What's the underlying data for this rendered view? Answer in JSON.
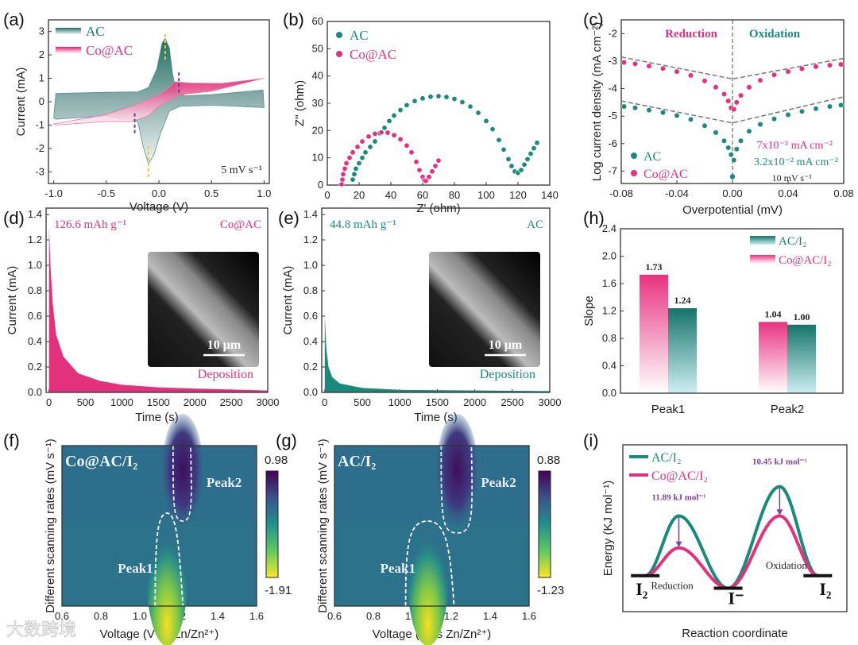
{
  "watermark": "大数跨境",
  "colors": {
    "teal": "#1a8a7a",
    "pink": "#e3317d",
    "purple": "#7b3fa0",
    "yellow": "#f2c230"
  },
  "chart_data": [
    {
      "panel": "(a)",
      "type": "area",
      "xlabel": "Voltage (V)",
      "ylabel": "Current (mA)",
      "xlim": [
        -1.05,
        1.05
      ],
      "ylim": [
        -3.5,
        3.5
      ],
      "xticks": [
        -1,
        -0.5,
        0,
        0.5,
        1
      ],
      "xticklabels": [
        "-1.0",
        "-0.5",
        "0.0",
        "0.5",
        "1.0"
      ],
      "yticks": [
        -3,
        -2,
        -1,
        0,
        1,
        2,
        3
      ],
      "yticklabels": [
        "-3",
        "-2",
        "-1",
        "0",
        "1",
        "2",
        "3"
      ],
      "series": [
        {
          "name": "AC",
          "color": "#1a7a6e",
          "points": [
            [
              -1,
              -0.7
            ],
            [
              -0.98,
              0.35
            ],
            [
              -0.5,
              0.4
            ],
            [
              -0.2,
              0.42
            ],
            [
              -0.1,
              0.6
            ],
            [
              -0.02,
              1.4
            ],
            [
              0.03,
              2.5
            ],
            [
              0.06,
              2.7
            ],
            [
              0.1,
              2.3
            ],
            [
              0.13,
              1.2
            ],
            [
              0.16,
              0.5
            ],
            [
              0.25,
              0.25
            ],
            [
              0.5,
              0.3
            ],
            [
              0.99,
              0.5
            ],
            [
              1,
              -0.25
            ],
            [
              0.5,
              -0.15
            ],
            [
              0.2,
              -0.2
            ],
            [
              0.1,
              -0.4
            ],
            [
              0.02,
              -1.3
            ],
            [
              -0.05,
              -2.3
            ],
            [
              -0.1,
              -2.65
            ],
            [
              -0.15,
              -1.9
            ],
            [
              -0.2,
              -0.85
            ],
            [
              -0.5,
              -0.6
            ],
            [
              -0.98,
              -0.75
            ]
          ]
        },
        {
          "name": "Co@AC",
          "color": "#e3317d",
          "points": [
            [
              -1,
              -0.95
            ],
            [
              -0.5,
              -0.55
            ],
            [
              -0.2,
              -0.1
            ],
            [
              0,
              0.3
            ],
            [
              0.1,
              0.6
            ],
            [
              0.15,
              0.85
            ],
            [
              0.3,
              0.8
            ],
            [
              0.6,
              0.78
            ],
            [
              1,
              1.0
            ],
            [
              0.95,
              0.95
            ],
            [
              0.5,
              0.45
            ],
            [
              0.2,
              0.3
            ],
            [
              0.1,
              0.05
            ],
            [
              0,
              -0.2
            ],
            [
              -0.1,
              -0.6
            ],
            [
              -0.25,
              -0.85
            ],
            [
              -0.5,
              -0.85
            ],
            [
              -0.98,
              -1.0
            ]
          ]
        }
      ],
      "peak_markers": [
        {
          "x": 0.06,
          "y": [
            1.8,
            2.95
          ],
          "color": "#f2c230"
        },
        {
          "x": -0.1,
          "y": [
            -1.9,
            -3.25
          ],
          "color": "#f2c230"
        },
        {
          "x": 0.19,
          "y": [
            0.4,
            1.35
          ],
          "color": "#6a3d9a"
        },
        {
          "x": -0.23,
          "y": [
            -0.5,
            -1.45
          ],
          "color": "#6a3d9a"
        }
      ],
      "annotation": "5 mV s⁻¹"
    },
    {
      "panel": "(b)",
      "type": "scatter",
      "xlabel": "Z' (ohm)",
      "ylabel": "Z'' (ohm)",
      "xlim": [
        0,
        140
      ],
      "ylim": [
        0,
        60
      ],
      "xticks": [
        0,
        20,
        40,
        60,
        80,
        100,
        120,
        140
      ],
      "xticklabels": [
        "0",
        "20",
        "40",
        "60",
        "80",
        "100",
        "120",
        "140"
      ],
      "yticks": [
        0,
        10,
        20,
        30,
        40,
        50,
        60
      ],
      "yticklabels": [
        "0",
        "10",
        "20",
        "30",
        "40",
        "50",
        "60"
      ],
      "series": [
        {
          "name": "AC",
          "color": "#1a8a7a",
          "points": [
            [
              16,
              2
            ],
            [
              17,
              4
            ],
            [
              18,
              6
            ],
            [
              20,
              8
            ],
            [
              22,
              10
            ],
            [
              24,
              12
            ],
            [
              27,
              14
            ],
            [
              30,
              16
            ],
            [
              33,
              19
            ],
            [
              36,
              21
            ],
            [
              39,
              23.5
            ],
            [
              42,
              25.5
            ],
            [
              46,
              27.5
            ],
            [
              50,
              29.3
            ],
            [
              55,
              30.8
            ],
            [
              60,
              31.8
            ],
            [
              65,
              32.4
            ],
            [
              70,
              32.6
            ],
            [
              75,
              32.3
            ],
            [
              80,
              31.6
            ],
            [
              85,
              30.4
            ],
            [
              90,
              28.8
            ],
            [
              95,
              26.5
            ],
            [
              100,
              23.5
            ],
            [
              104,
              20.5
            ],
            [
              108,
              16.5
            ],
            [
              111,
              13
            ],
            [
              114,
              9.5
            ],
            [
              116,
              7
            ],
            [
              118,
              5
            ],
            [
              120,
              4.5
            ],
            [
              122,
              5.5
            ],
            [
              124,
              7.5
            ],
            [
              126,
              9.5
            ],
            [
              128,
              11.5
            ],
            [
              130,
              13.5
            ],
            [
              132,
              15.5
            ]
          ]
        },
        {
          "name": "Co@AC",
          "color": "#e3317d",
          "points": [
            [
              9,
              0.3
            ],
            [
              9.5,
              2
            ],
            [
              10,
              4
            ],
            [
              11,
              6
            ],
            [
              12,
              8
            ],
            [
              14,
              10
            ],
            [
              16,
              12
            ],
            [
              19,
              14
            ],
            [
              22,
              16
            ],
            [
              26,
              17.8
            ],
            [
              30,
              18.8
            ],
            [
              34,
              19.3
            ],
            [
              38,
              19.2
            ],
            [
              42,
              18.3
            ],
            [
              46,
              16.8
            ],
            [
              50,
              14.5
            ],
            [
              53,
              12
            ],
            [
              56,
              8.5
            ],
            [
              58,
              5.5
            ],
            [
              60,
              3
            ],
            [
              61,
              1.8
            ],
            [
              62,
              1.5
            ],
            [
              64,
              3
            ],
            [
              66,
              5
            ],
            [
              68,
              7
            ],
            [
              70,
              9
            ]
          ]
        }
      ]
    },
    {
      "panel": "(c)",
      "type": "scatter",
      "xlabel": "Overpotential (mV)",
      "ylabel": "Log current density (mA cm⁻²)",
      "xlim": [
        -0.08,
        0.08
      ],
      "ylim": [
        -7.45,
        -1.5
      ],
      "xticks": [
        -0.08,
        -0.04,
        0,
        0.04,
        0.08
      ],
      "xticklabels": [
        "-0.08",
        "-0.04",
        "0.00",
        "0.04",
        "0.08"
      ],
      "yticks": [
        -7,
        -6,
        -5,
        -4,
        -3,
        -2
      ],
      "yticklabels": [
        "-7",
        "-6",
        "-5",
        "-4",
        "-3",
        "-2"
      ],
      "x": [
        -0.078,
        -0.07,
        -0.06,
        -0.05,
        -0.04,
        -0.03,
        -0.02,
        -0.012,
        -0.006,
        -0.003,
        -0.001,
        0.001,
        0.003,
        0.006,
        0.012,
        0.02,
        0.03,
        0.04,
        0.05,
        0.06,
        0.07,
        0.078
      ],
      "series": [
        {
          "name": "AC",
          "color": "#1a8a7a",
          "y": [
            -4.65,
            -4.7,
            -4.78,
            -4.87,
            -4.98,
            -5.12,
            -5.35,
            -5.6,
            -5.9,
            -6.15,
            -6.4,
            -6.6,
            -6.2,
            -5.9,
            -5.55,
            -5.3,
            -5.1,
            -4.95,
            -4.83,
            -4.73,
            -4.65,
            -4.6
          ]
        },
        {
          "name": "Co@AC",
          "color": "#e3317d",
          "y": [
            -3.05,
            -3.1,
            -3.18,
            -3.27,
            -3.38,
            -3.52,
            -3.72,
            -3.95,
            -4.2,
            -4.45,
            -4.7,
            -4.75,
            -4.5,
            -4.25,
            -3.95,
            -3.7,
            -3.5,
            -3.38,
            -3.28,
            -3.2,
            -3.15,
            -3.12
          ]
        }
      ],
      "fits": [
        {
          "x": [
            -0.08,
            0,
            0.08
          ],
          "y": [
            -2.85,
            -3.65,
            -2.9
          ]
        },
        {
          "x": [
            -0.08,
            0,
            0.08
          ],
          "y": [
            -4.45,
            -5.25,
            -4.3
          ]
        }
      ],
      "region_labels": [
        "Reduction",
        "Oxidation"
      ],
      "annotations": [
        "7x10⁻³ mA cm⁻²",
        "3.2x10⁻² mA cm⁻²",
        "10 mV s⁻¹"
      ]
    },
    {
      "panel": "(d)",
      "type": "area",
      "xlabel": "Time (s)",
      "ylabel": "Current (mA)",
      "xlim": [
        -40,
        3000
      ],
      "ylim": [
        0,
        1.45
      ],
      "xticks": [
        0,
        500,
        1000,
        1500,
        2000,
        2500,
        3000
      ],
      "xticklabels": [
        "0",
        "500",
        "1000",
        "1500",
        "2000",
        "2500",
        "3000"
      ],
      "yticks": [
        0,
        0.2,
        0.4,
        0.6,
        0.8,
        1.0,
        1.2,
        1.4
      ],
      "yticklabels": [
        "0.0",
        "0.2",
        "0.4",
        "0.6",
        "0.8",
        "1.0",
        "1.2",
        "1.4"
      ],
      "series": [
        {
          "name": "Co@AC",
          "color": "#e3317d",
          "points": [
            [
              0,
              1.3
            ],
            [
              20,
              1.0
            ],
            [
              50,
              0.7
            ],
            [
              100,
              0.45
            ],
            [
              200,
              0.28
            ],
            [
              400,
              0.15
            ],
            [
              700,
              0.09
            ],
            [
              1000,
              0.06
            ],
            [
              1500,
              0.04
            ],
            [
              2000,
              0.03
            ],
            [
              3000,
              0.015
            ]
          ]
        }
      ],
      "capacity": "126.6 mAh g⁻¹",
      "sample": "Co@AC",
      "process": "Deposition",
      "scale_bar": "10 μm"
    },
    {
      "panel": "(e)",
      "type": "area",
      "xlabel": "Time (s)",
      "ylabel": "Current (mA)",
      "xlim": [
        -40,
        3000
      ],
      "ylim": [
        0,
        1.45
      ],
      "xticks": [
        0,
        500,
        1000,
        1500,
        2000,
        2500,
        3000
      ],
      "xticklabels": [
        "0",
        "500",
        "1000",
        "1500",
        "2000",
        "2500",
        "3000"
      ],
      "yticks": [
        0,
        0.2,
        0.4,
        0.6,
        0.8,
        1.0,
        1.2,
        1.4
      ],
      "yticklabels": [
        "0.0",
        "0.2",
        "0.4",
        "0.6",
        "0.8",
        "1.0",
        "1.2",
        "1.4"
      ],
      "series": [
        {
          "name": "AC",
          "color": "#1a8a7a",
          "points": [
            [
              0,
              0.6
            ],
            [
              20,
              0.35
            ],
            [
              50,
              0.2
            ],
            [
              100,
              0.12
            ],
            [
              200,
              0.07
            ],
            [
              500,
              0.035
            ],
            [
              1000,
              0.02
            ],
            [
              3000,
              0.01
            ]
          ]
        }
      ],
      "capacity": "44.8 mAh g⁻¹",
      "sample": "AC",
      "process": "Deposition",
      "scale_bar": "10 μm"
    },
    {
      "panel": "(h)",
      "type": "bar",
      "xlabel": "",
      "ylabel": "Slope",
      "ylim": [
        0,
        2.4
      ],
      "categories": [
        "Peak1",
        "Peak2"
      ],
      "yticks": [
        0,
        0.4,
        0.8,
        1.2,
        1.6,
        2.0,
        2.4
      ],
      "yticklabels": [
        "0.0",
        "0.4",
        "0.8",
        "1.2",
        "1.6",
        "2.0",
        "2.4"
      ],
      "series": [
        {
          "name": "Co@AC/I₂",
          "color": "#e3317d",
          "values": [
            1.73,
            1.04
          ],
          "labels": [
            "1.73",
            "1.04"
          ]
        },
        {
          "name": "AC/I₂",
          "color": "#1a7a6e",
          "values": [
            1.24,
            1.0
          ],
          "labels": [
            "1.24",
            "1.00"
          ]
        }
      ],
      "legend": [
        "AC/I₂",
        "Co@AC/I₂"
      ],
      "legend_position": "top-right"
    },
    {
      "panel": "(f)",
      "type": "heatmap",
      "xlabel": "Voltage (V vs Zn/Zn²⁺)",
      "ylabel": "Different scanning rates (mV s⁻¹)",
      "xlim": [
        0.6,
        1.6
      ],
      "xticks": [
        0.6,
        0.8,
        1.0,
        1.2,
        1.4,
        1.6
      ],
      "xticklabels": [
        "0.6",
        "0.8",
        "1.0",
        "1.2",
        "1.4",
        "1.6"
      ],
      "title": "Co@AC/I₂",
      "colorbar": {
        "max": "0.98",
        "min": "-1.91"
      },
      "regions": [
        {
          "label": "Peak1",
          "voltage": 1.14
        },
        {
          "label": "Peak2",
          "voltage": 1.22
        }
      ]
    },
    {
      "panel": "(g)",
      "type": "heatmap",
      "xlabel": "Voltage (V vs Zn/Zn²⁺)",
      "ylabel": "Different scanning rates (mV s⁻¹)",
      "xlim": [
        0.6,
        1.6
      ],
      "xticks": [
        0.6,
        0.8,
        1.0,
        1.2,
        1.4,
        1.6
      ],
      "xticklabels": [
        "0.6",
        "0.8",
        "1.0",
        "1.2",
        "1.4",
        "1.6"
      ],
      "title": "AC/I₂",
      "colorbar": {
        "max": "0.88",
        "min": "-1.23"
      },
      "regions": [
        {
          "label": "Peak1",
          "voltage": 1.08
        },
        {
          "label": "Peak2",
          "voltage": 1.23
        }
      ]
    },
    {
      "panel": "(i)",
      "type": "line",
      "xlabel": "Reaction coordinate",
      "ylabel": "Energy (KJ mol⁻¹)",
      "xlim": [
        0,
        1
      ],
      "ylim": [
        -1.29,
        4.7
      ],
      "states": [
        {
          "label": "I₂",
          "x": 0.1,
          "energy": 0
        },
        {
          "label": "I⁻",
          "x": 0.47,
          "energy": -0.45
        },
        {
          "label": "I₂",
          "x": 0.87,
          "energy": 0
        }
      ],
      "series": [
        {
          "name": "AC/I₂",
          "color": "#1a8a7a",
          "barriers": [
            {
              "x": 0.25,
              "energy": 2.15
            },
            {
              "x": 0.7,
              "energy": 3.2
            }
          ]
        },
        {
          "name": "Co@AC/I₂",
          "color": "#e3317d",
          "barriers": [
            {
              "x": 0.25,
              "energy": 1.0
            },
            {
              "x": 0.7,
              "energy": 2.15
            }
          ]
        }
      ],
      "differences": [
        "11.89 kJ mol⁻¹",
        "10.45 kJ mol⁻¹"
      ],
      "process_labels": [
        "Reduction",
        "Oxidation"
      ]
    }
  ]
}
